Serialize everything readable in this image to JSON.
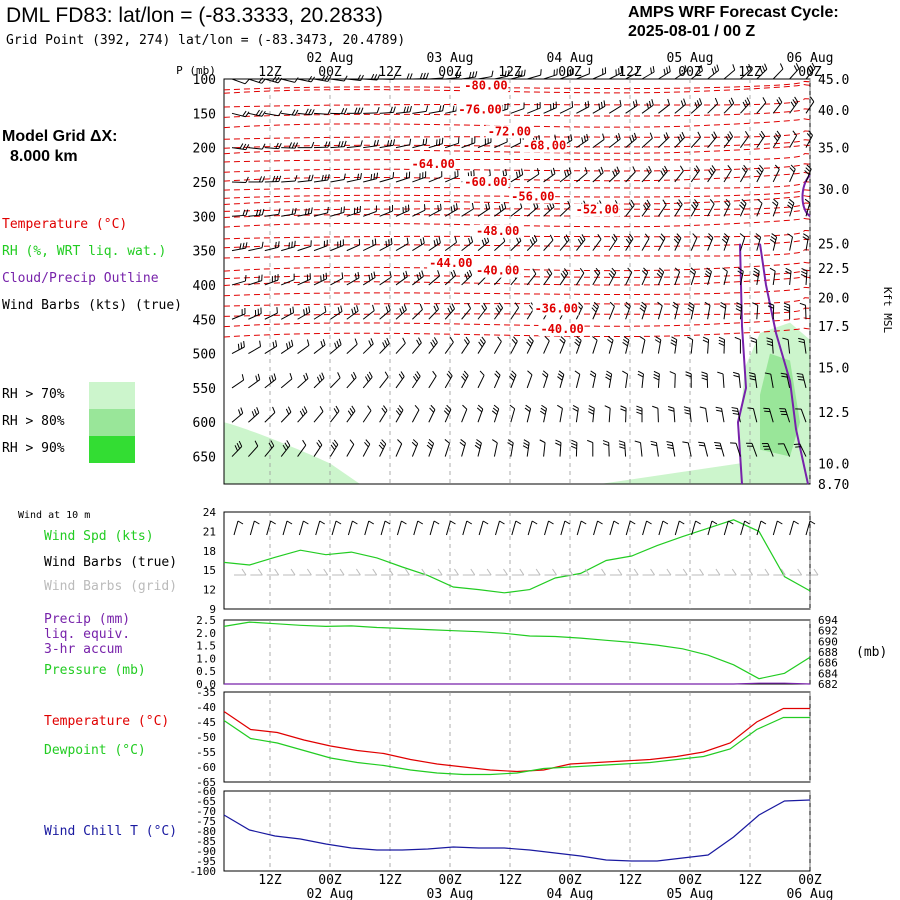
{
  "header": {
    "title": "DML FD83:  lat/lon = (-83.3333, 20.2833)",
    "subtitle": "Grid Point (392, 274) lat/lon = (-83.3473, 20.4789)",
    "cycle_line1": "AMPS WRF Forecast Cycle:",
    "cycle_line2": "2025-08-01 / 00  Z"
  },
  "model_grid": {
    "line1": "Model Grid ΔX:",
    "line2": "8.000 km"
  },
  "legend_upper": {
    "temperature": "Temperature (°C)",
    "rh": "RH (%, WRT liq. wat.)",
    "cloud": "Cloud/Precip Outline",
    "wind": "Wind Barbs (kts) (true)",
    "rh_levels": [
      "RH > 70%",
      "RH > 80%",
      "RH > 90%"
    ],
    "rh_colors": [
      "#ccf5cc",
      "#99e699",
      "#33dd33"
    ]
  },
  "legend_wind10": {
    "header": "Wind at 10 m",
    "spd": "Wind Spd (kts)",
    "barbs_true": "Wind Barbs (true)",
    "barbs_grid": "Wind Barbs (grid)"
  },
  "legend_precip": {
    "line1": "Precip (mm)",
    "line2": "liq. equiv.",
    "line3": "3-hr accum",
    "line4": "Pressure (mb)"
  },
  "legend_temp": {
    "temp": "Temperature (°C)",
    "dew": "Dewpoint (°C)"
  },
  "legend_chill": {
    "label": "Wind Chill T (°C)"
  },
  "colors": {
    "temperature": "#e00000",
    "dewpoint": "#22cc22",
    "wind_speed": "#22cc22",
    "cloud_outline": "#7722aa",
    "wind_chill": "#1a1aa0",
    "precip": "#7722aa",
    "grid_barbs": "#bbbbbb"
  },
  "chart_data": [
    {
      "type": "line",
      "panel": "time-height cross section",
      "title": "",
      "ylabel": "P (mb)",
      "ylabel_right": "Kft MSL",
      "x_ticks": [
        "12Z",
        "00Z",
        "12Z",
        "00Z",
        "12Z",
        "00Z",
        "12Z",
        "00Z",
        "12Z",
        "00Z"
      ],
      "x_days": [
        "02 Aug",
        "03 Aug",
        "04 Aug",
        "05 Aug",
        "06 Aug"
      ],
      "pressure_levels": [
        100,
        150,
        200,
        250,
        300,
        350,
        400,
        450,
        500,
        550,
        600,
        650
      ],
      "pressure_ticks": [
        "100",
        "150",
        "200",
        "250",
        "300",
        "350",
        "400",
        "450",
        "500",
        "550",
        "600",
        "650"
      ],
      "ylim": [
        100,
        690
      ],
      "kft_labels": [
        "45.0",
        "40.0",
        "35.0",
        "30.0",
        "25.0",
        "22.5",
        "20.0",
        "17.5",
        "15.0",
        "12.5",
        "10.0",
        "8.70"
      ],
      "kft_pressures": [
        100,
        145,
        200,
        260,
        340,
        375,
        418,
        460,
        520,
        585,
        660,
        690
      ],
      "isotherm_labels": [
        {
          "label": "-80.00",
          "t": 0.41,
          "p": 115
        },
        {
          "label": "-76.00",
          "t": 0.4,
          "p": 150
        },
        {
          "label": "-72.00",
          "t": 0.45,
          "p": 182
        },
        {
          "label": "-68.00",
          "t": 0.51,
          "p": 203
        },
        {
          "label": "-64.00",
          "t": 0.32,
          "p": 230
        },
        {
          "label": "-60.00",
          "t": 0.41,
          "p": 256
        },
        {
          "label": "-56.00",
          "t": 0.49,
          "p": 277
        },
        {
          "label": "-52.00",
          "t": 0.6,
          "p": 296
        },
        {
          "label": "-48.00",
          "t": 0.43,
          "p": 327
        },
        {
          "label": "-44.00",
          "t": 0.35,
          "p": 374
        },
        {
          "label": "-40.00",
          "t": 0.43,
          "p": 385
        },
        {
          "label": "-36.00",
          "t": 0.53,
          "p": 440
        },
        {
          "label": "-40.00",
          "t": 0.54,
          "p": 470
        }
      ],
      "isotherm_label_colors": "#e00000"
    },
    {
      "type": "line",
      "panel": "10 m wind speed",
      "title": "",
      "ylim": [
        9,
        24
      ],
      "y_ticks": [
        "24",
        "21",
        "18",
        "15",
        "12",
        "9"
      ],
      "series": [
        {
          "name": "Wind Spd (kts)",
          "values": [
            16.2,
            15.8,
            17.0,
            18.1,
            17.4,
            17.8,
            16.9,
            15.5,
            14.2,
            12.4,
            12.0,
            11.5,
            12.0,
            13.8,
            14.5,
            16.5,
            17.2,
            18.8,
            20.2,
            21.5,
            22.8,
            21.0,
            14.0,
            11.8
          ]
        }
      ]
    },
    {
      "type": "line",
      "panel": "precip and pressure",
      "title": "",
      "ylim": [
        0.0,
        2.5
      ],
      "y_ticks": [
        "2.5",
        "2.0",
        "1.5",
        "1.0",
        "0.5",
        "0.0"
      ],
      "ylim_right": [
        682,
        694
      ],
      "y_ticks_right": [
        "694",
        "692",
        "690",
        "688",
        "686",
        "684",
        "682"
      ],
      "ylabel_right": "(mb)",
      "series": [
        {
          "name": "Pressure (mb)",
          "values": [
            692.8,
            693.6,
            693.3,
            693.0,
            692.8,
            692.9,
            692.6,
            692.4,
            692.2,
            692.0,
            691.8,
            691.5,
            691.0,
            690.9,
            690.6,
            690.2,
            689.8,
            689.3,
            688.6,
            687.4,
            685.6,
            683.0,
            684.0,
            687.0
          ]
        },
        {
          "name": "Precip (mm)",
          "values": [
            0,
            0,
            0,
            0,
            0,
            0,
            0,
            0,
            0,
            0,
            0,
            0,
            0,
            0,
            0,
            0,
            0,
            0,
            0,
            0,
            0,
            0.03,
            0.03,
            0
          ]
        }
      ]
    },
    {
      "type": "line",
      "panel": "temperature and dewpoint",
      "title": "",
      "ylim": [
        -65,
        -35
      ],
      "y_ticks": [
        "-35",
        "-40",
        "-45",
        "-50",
        "-55",
        "-60",
        "-65"
      ],
      "series": [
        {
          "name": "Temperature (°C)",
          "values": [
            -41.5,
            -47.5,
            -48.5,
            -51.0,
            -53.0,
            -54.5,
            -55.5,
            -57.5,
            -59.0,
            -60.0,
            -61.0,
            -61.5,
            -61.0,
            -59.0,
            -58.5,
            -58.0,
            -57.5,
            -56.5,
            -55.0,
            -52.0,
            -45.0,
            -40.5,
            -40.5
          ]
        },
        {
          "name": "Dewpoint (°C)",
          "values": [
            -44.5,
            -50.5,
            -52.0,
            -54.5,
            -57.0,
            -58.5,
            -59.5,
            -61.0,
            -62.0,
            -62.5,
            -62.5,
            -62.0,
            -60.5,
            -60.0,
            -59.5,
            -59.0,
            -58.5,
            -57.5,
            -56.5,
            -54.0,
            -47.5,
            -43.5,
            -43.5
          ]
        }
      ]
    },
    {
      "type": "line",
      "panel": "wind chill",
      "title": "",
      "ylim": [
        -100,
        -60
      ],
      "y_ticks": [
        "-60",
        "-65",
        "-70",
        "-75",
        "-80",
        "-85",
        "-90",
        "-95",
        "-100"
      ],
      "series": [
        {
          "name": "Wind Chill T (°C)",
          "values": [
            -72.0,
            -79.5,
            -82.5,
            -84.0,
            -86.5,
            -88.5,
            -89.5,
            -89.5,
            -89.0,
            -88.0,
            -88.5,
            -88.5,
            -89.5,
            -91.0,
            -92.5,
            -94.5,
            -95.0,
            -95.0,
            -93.5,
            -92.0,
            -83.0,
            -72.0,
            -65.0,
            -64.5
          ]
        }
      ]
    }
  ]
}
